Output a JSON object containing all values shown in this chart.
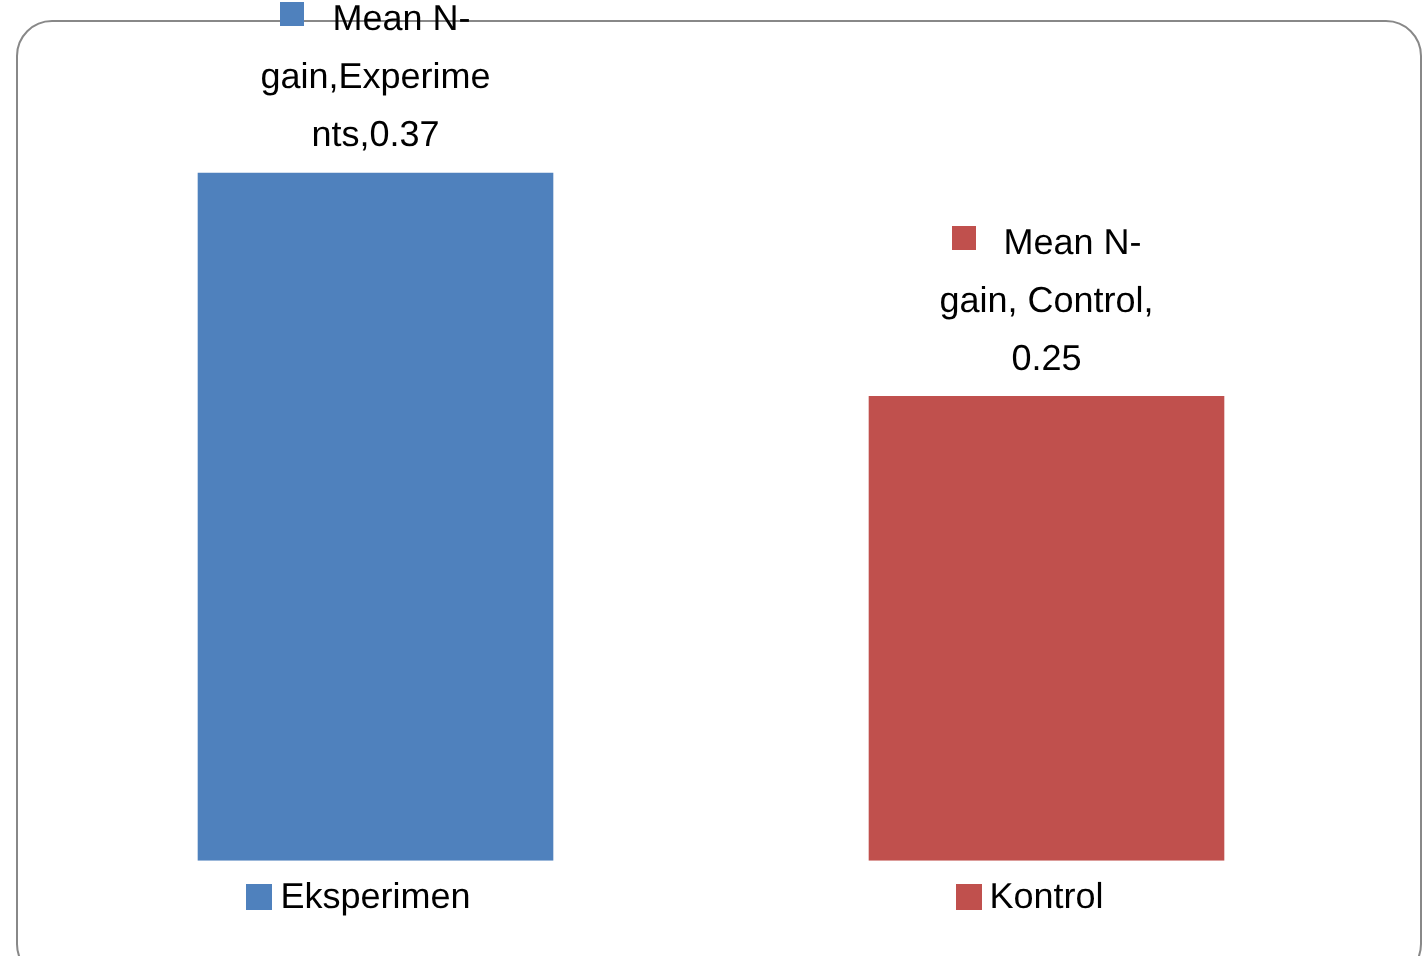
{
  "chart_data": {
    "type": "bar",
    "categories": [
      "Eksperimen",
      "Kontrol"
    ],
    "series": [
      {
        "colors": [
          "#4f81bd",
          "#c0504d"
        ],
        "values": [
          0.37,
          0.25
        ],
        "value_labels": [
          "Mean N-gain,Experiments,0.37",
          "Mean N-gain, Control, 0.25"
        ]
      }
    ],
    "tick_labels": "x",
    "grid": false
  }
}
